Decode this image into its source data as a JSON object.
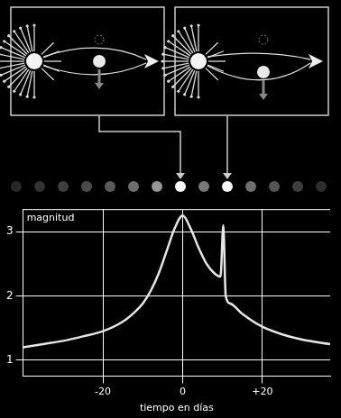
{
  "chart_data": {
    "type": "line",
    "xlabel": "tiempo en días",
    "ylabel": "magnitud",
    "x": [
      -40,
      -35,
      -30,
      -25,
      -20,
      -15,
      -12,
      -10,
      -8,
      -6,
      -4,
      -2,
      0,
      2,
      4,
      6,
      8,
      9.5,
      10.2,
      10.8,
      12,
      15,
      20,
      25,
      30,
      37
    ],
    "values": [
      1.2,
      1.25,
      1.3,
      1.37,
      1.45,
      1.6,
      1.75,
      1.88,
      2.08,
      2.35,
      2.7,
      3.05,
      3.25,
      3.05,
      2.75,
      2.5,
      2.35,
      2.3,
      3.1,
      2.0,
      1.88,
      1.72,
      1.52,
      1.4,
      1.32,
      1.25
    ],
    "color": "#e6e6e6",
    "xlim": [
      -40,
      37
    ],
    "ylim": [
      0.75,
      3.35
    ],
    "xticks": [
      -20,
      0,
      {
        "value": 20,
        "label": "+20"
      }
    ],
    "yticks": [
      1,
      2,
      3
    ],
    "grid": true
  }
}
